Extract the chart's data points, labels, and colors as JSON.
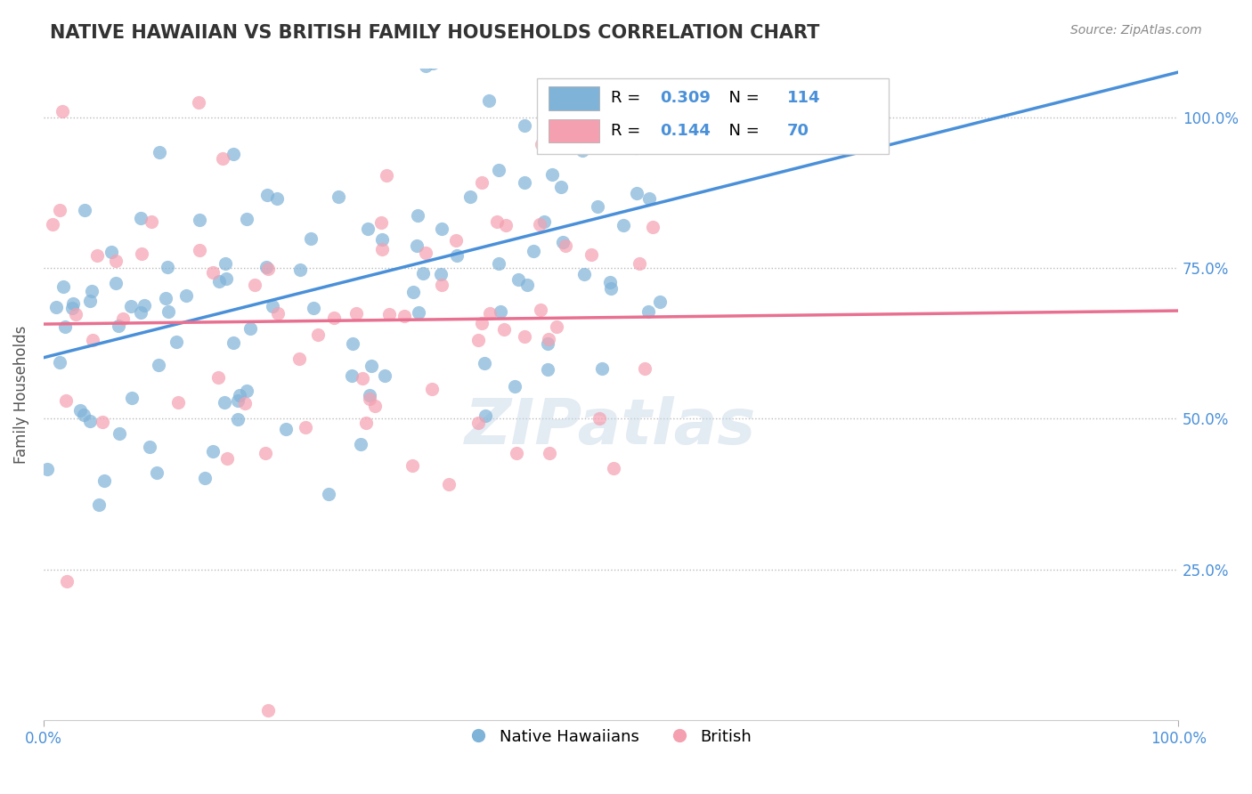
{
  "title": "NATIVE HAWAIIAN VS BRITISH FAMILY HOUSEHOLDS CORRELATION CHART",
  "source": "Source: ZipAtlas.com",
  "ylabel": "Family Households",
  "yticks": [
    "25.0%",
    "50.0%",
    "75.0%",
    "100.0%"
  ],
  "ytick_vals": [
    0.25,
    0.5,
    0.75,
    1.0
  ],
  "legend_label_blue": "Native Hawaiians",
  "legend_label_pink": "British",
  "R_blue": 0.309,
  "R_pink": 0.144,
  "N_blue": 114,
  "N_pink": 70,
  "scatter_color_blue": "#7fb3d8",
  "scatter_color_pink": "#f4a0b0",
  "line_color_blue": "#4a90d9",
  "line_color_pink": "#e87090",
  "background_color": "#ffffff",
  "title_color": "#333333",
  "title_fontsize": 15,
  "axis_color": "#4a90d9",
  "watermark_color": "#c8d8e8"
}
